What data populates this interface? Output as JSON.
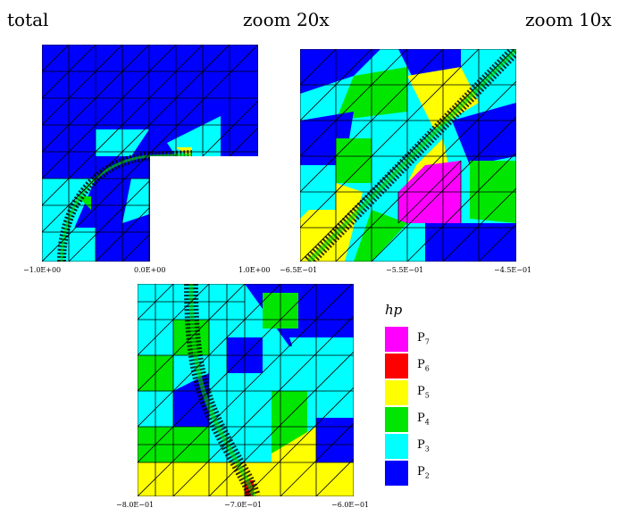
{
  "titles": {
    "left": "total",
    "middle": "zoom 20x",
    "right": "zoom 10x"
  },
  "panels": {
    "total": {
      "ticks": [
        "−1.0E+00",
        "0.0E+00",
        "1.0E+00"
      ]
    },
    "zoom20": {
      "ticks": [
        "−6.5E−01",
        "−5.5E−01",
        "−4.5E−01"
      ]
    },
    "zoom10": {
      "ticks": [
        "−8.0E−01",
        "−7.0E−01",
        "−6.0E−01"
      ]
    }
  },
  "legend": {
    "title": "hp",
    "items": [
      {
        "base": "P",
        "order": "7",
        "color": "#ff00ff"
      },
      {
        "base": "P",
        "order": "6",
        "color": "#ff0000"
      },
      {
        "base": "P",
        "order": "5",
        "color": "#ffff00"
      },
      {
        "base": "P",
        "order": "4",
        "color": "#00e600"
      },
      {
        "base": "P",
        "order": "3",
        "color": "#00ffff"
      },
      {
        "base": "P",
        "order": "2",
        "color": "#0000ff"
      }
    ]
  }
}
